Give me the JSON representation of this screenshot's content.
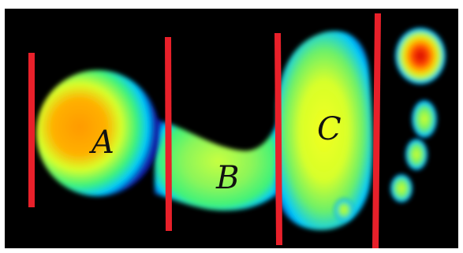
{
  "figure": {
    "background_color": "#000000",
    "divider_color": "#e8202a",
    "heat_colors": [
      "#0a1aa8",
      "#00c8ff",
      "#3ef27a",
      "#d8ff2a",
      "#ff9a00",
      "#ff2a00",
      "#d40000"
    ],
    "regions": [
      {
        "key": "A",
        "label": "A"
      },
      {
        "key": "B",
        "label": "B"
      },
      {
        "key": "C",
        "label": "C"
      }
    ]
  }
}
